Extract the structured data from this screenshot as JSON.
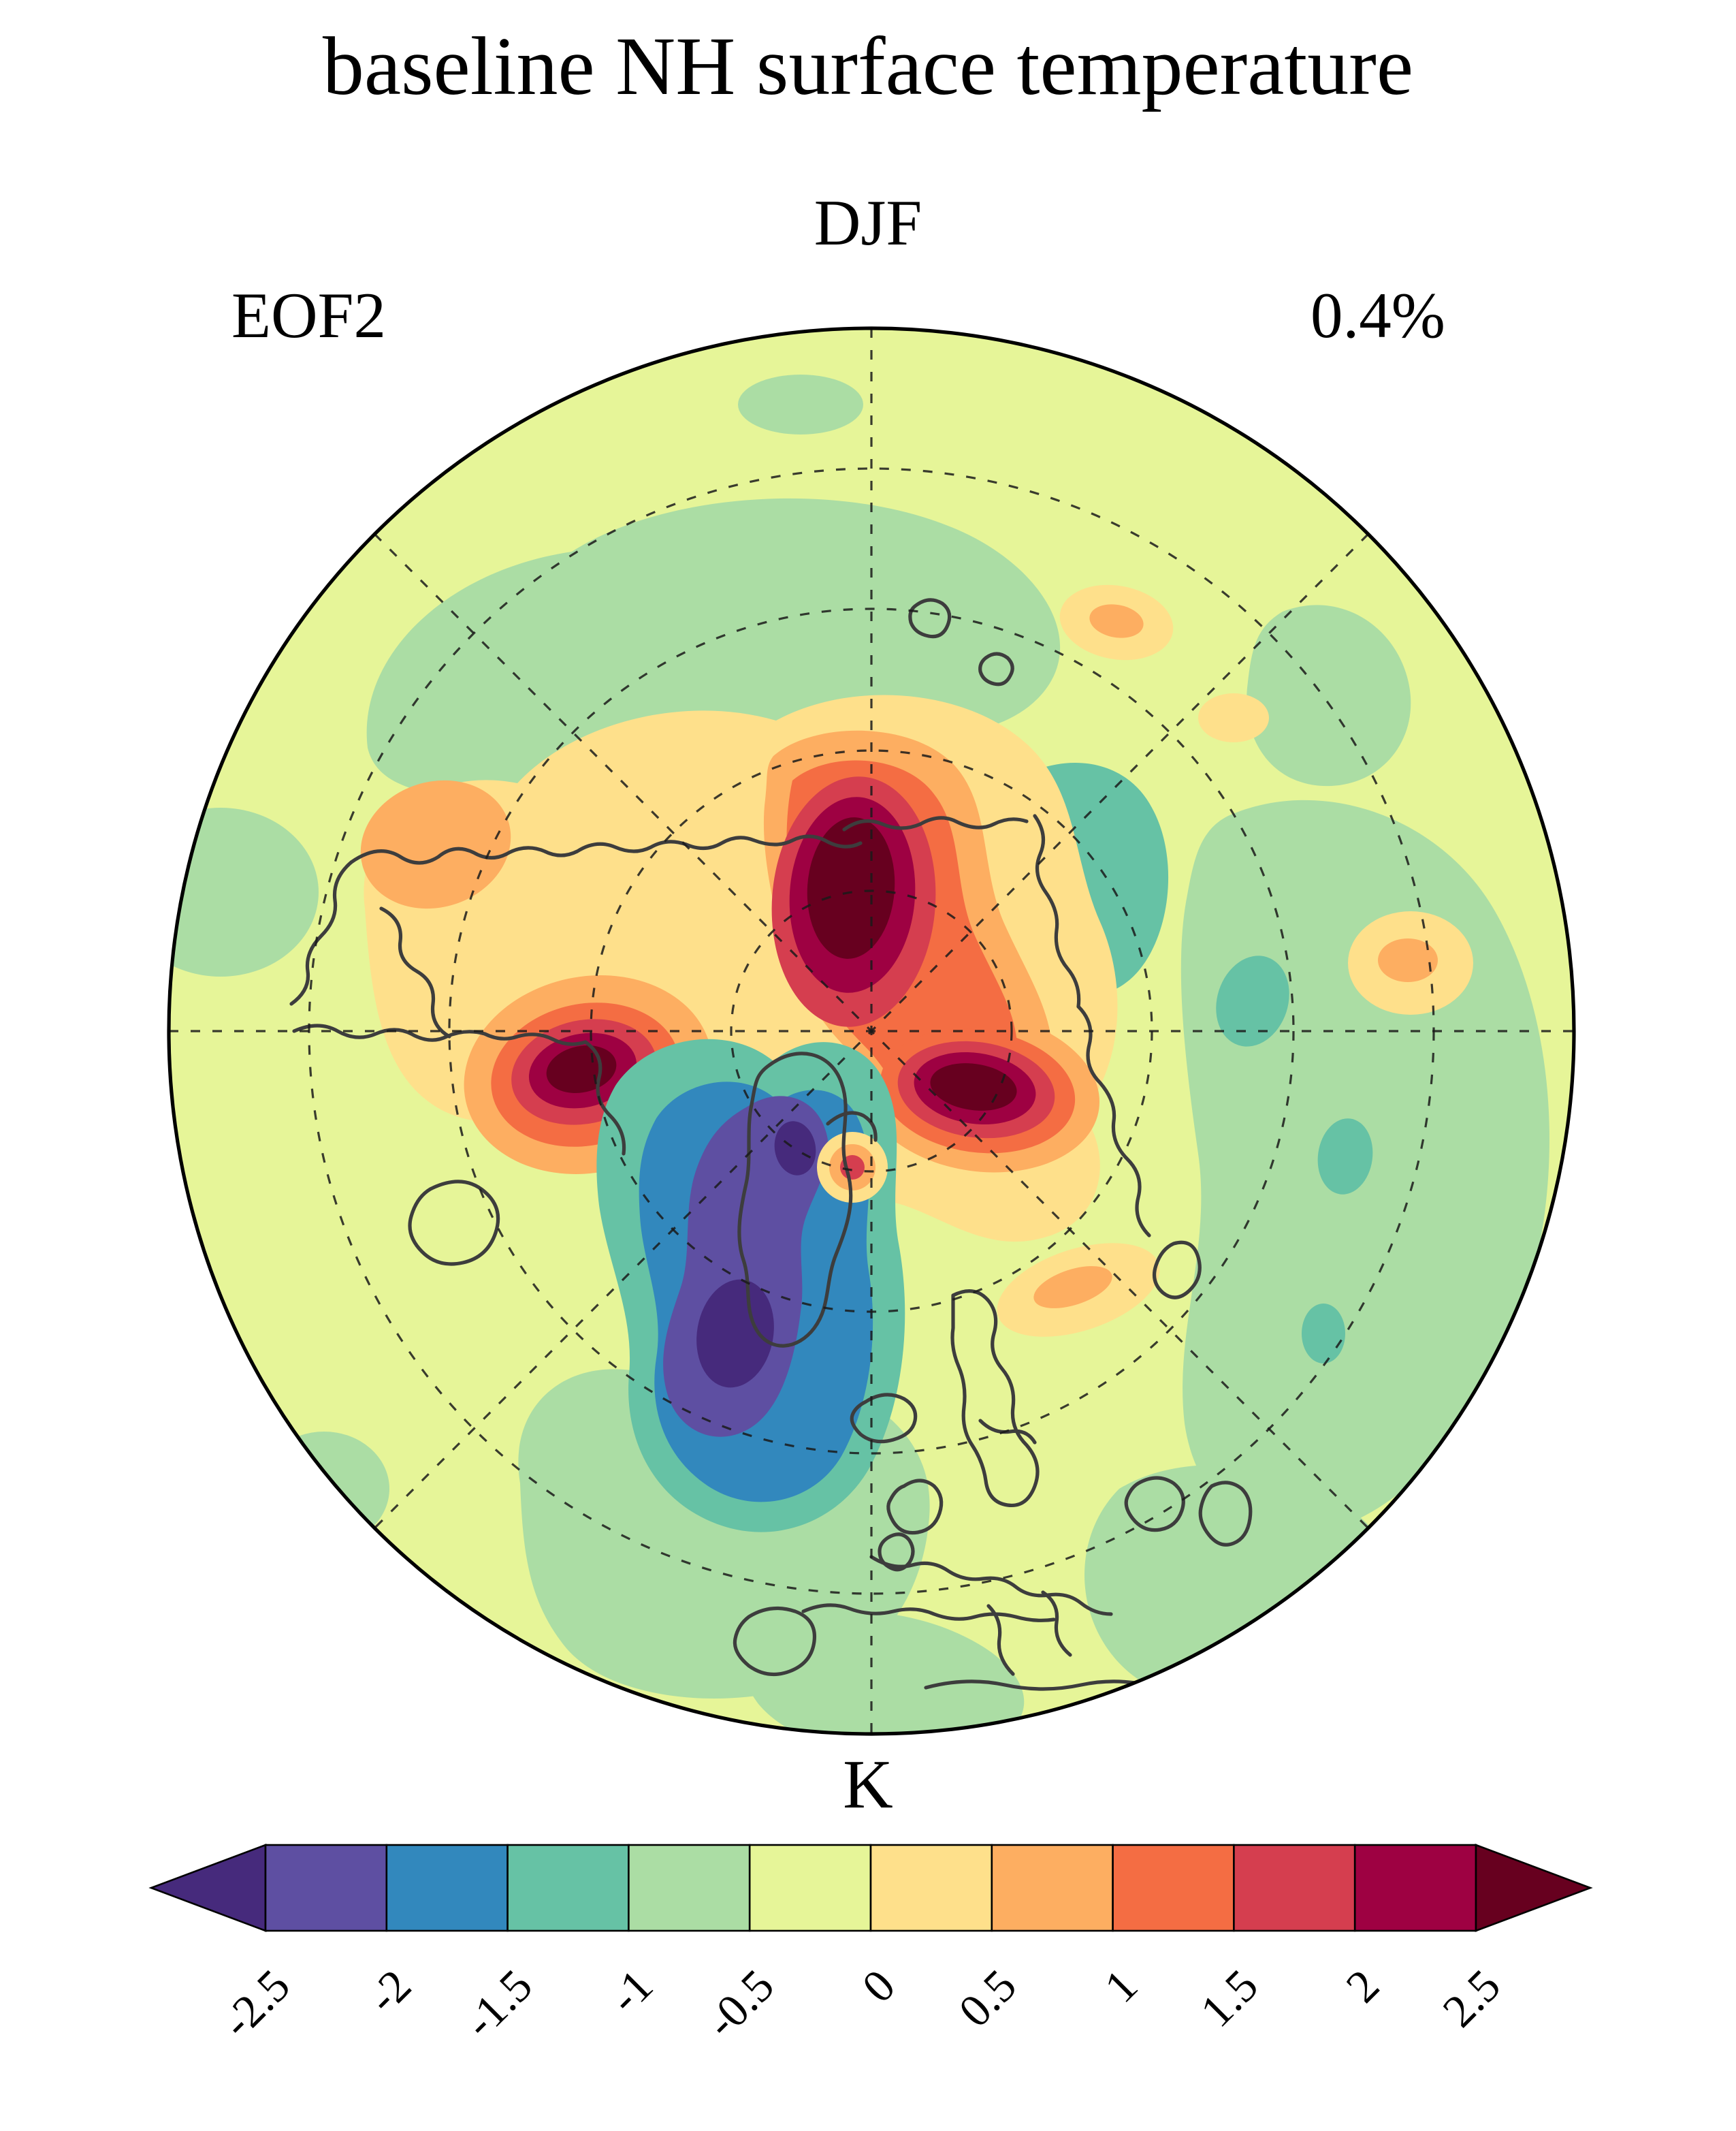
{
  "title": "baseline NH surface temperature",
  "subtitle": "DJF",
  "mode_label": "EOF2",
  "variance_label": "0.4%",
  "colorbar": {
    "unit": "K",
    "tick_labels": [
      "-2.5",
      "-2",
      "-1.5",
      "-1",
      "-0.5",
      "0",
      "0.5",
      "1",
      "1.5",
      "2",
      "2.5"
    ],
    "segment_colors": [
      "#5e4fa2",
      "#3288bd",
      "#66c2a5",
      "#abdda4",
      "#e6f598",
      "#fee08b",
      "#fdae61",
      "#f46d43",
      "#d53e4f",
      "#9e0142"
    ],
    "under_color": "#462a7c",
    "over_color": "#67001f"
  },
  "chart_data": {
    "type": "heatmap",
    "subtype": "filled-contour polar map",
    "title": "baseline NH surface temperature",
    "season": "DJF",
    "mode": "EOF2",
    "variance_explained_pct": 0.4,
    "units": "K",
    "projection": "north polar stereographic, circular boundary, dashed lat/lon graticule",
    "contour_levels": [
      -2.5,
      -2,
      -1.5,
      -1,
      -0.5,
      0,
      0.5,
      1,
      1.5,
      2,
      2.5
    ],
    "contour_interval": 0.5,
    "colormap": "Spectral-reversed, 10 discrete bins with under/over arrow extensions",
    "legend_position": "horizontal colorbar below map",
    "features": [
      {
        "position": "just above/right of pole (central Siberian Arctic sector)",
        "value_K": "> +2.5",
        "description": "large elongated strong warm center"
      },
      {
        "position": "left of center (Alaska/Bering sector)",
        "value_K": "> +2.5",
        "description": "compact strong warm center ringed by orange/yellow"
      },
      {
        "position": "right of and below pole (eastern Siberia sector)",
        "value_K": "> +2.5",
        "description": "second strong warm center"
      },
      {
        "position": "below center (Greenland / North Atlantic sector)",
        "value_K": "< -2.5",
        "description": "large strong cold center, purple core with blue/teal rings"
      },
      {
        "position": "small spot below pole",
        "value_K": "≈ +1.5 to +2",
        "description": "small isolated warm spot with yellow ring"
      },
      {
        "position": "upper-right of warm center",
        "value_K": "≈ -1.5 to -2",
        "description": "small teal/blue cold patch"
      },
      {
        "position": "hemisphere background",
        "value_K": "-0.5 to 0",
        "description": "yellow-green near-zero anomaly with scattered ±0.5-1 patches"
      }
    ]
  }
}
